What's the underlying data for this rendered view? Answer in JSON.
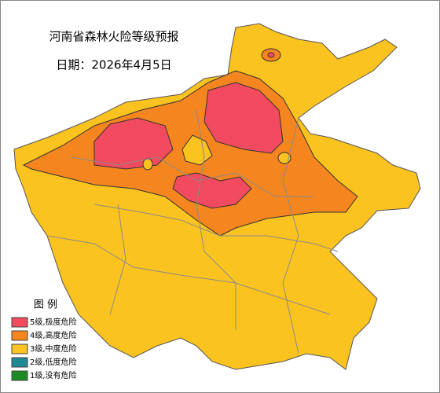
{
  "title": "河南省森林火险等级预报",
  "date": "日期：2026年4月5日",
  "legend": {
    "title": "图  例",
    "items": [
      {
        "label": "5级,极度危险",
        "color": "#f24a5e"
      },
      {
        "label": "4级,高度危险",
        "color": "#f5861f"
      },
      {
        "label": "3级,中度危险",
        "color": "#fbc320"
      },
      {
        "label": "2级,低度危险",
        "color": "#1f8a94"
      },
      {
        "label": "1级,没有危险",
        "color": "#1d8a24"
      }
    ]
  }
}
